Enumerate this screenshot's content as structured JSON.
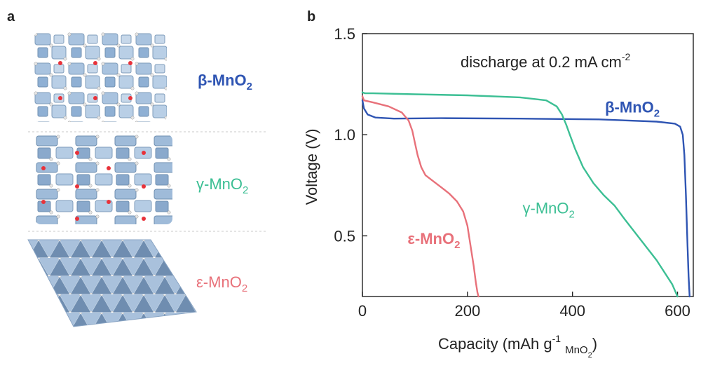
{
  "panel_a": {
    "letter": "a",
    "structures": [
      {
        "name": "beta",
        "label_main": "β-MnO",
        "label_sub": "2",
        "bold": true,
        "color": "#2f55b3"
      },
      {
        "name": "gamma",
        "label_main": "γ-MnO",
        "label_sub": "2",
        "bold": false,
        "color": "#3cbf94"
      },
      {
        "name": "epsilon",
        "label_main": "ε-MnO",
        "label_sub": "2",
        "bold": false,
        "color": "#e8717a"
      }
    ]
  },
  "panel_b": {
    "letter": "b",
    "annotation": {
      "main": "discharge at 0.2 mA cm",
      "sup": "-2"
    }
  },
  "chart_data": {
    "type": "line",
    "xlabel_main": "Capacity (mAh g",
    "xlabel_sup": "-1",
    "xlabel_sub_main": "MnO",
    "xlabel_sub_sub": "2",
    "xlabel_close": ")",
    "ylabel": "Voltage (V)",
    "xlim": [
      0,
      630
    ],
    "ylim": [
      0.2,
      1.5
    ],
    "xticks": [
      0,
      200,
      400,
      600
    ],
    "yticks": [
      0.5,
      1.0,
      1.5
    ],
    "ytick_labels": [
      "0.5",
      "1.0",
      "1.5"
    ],
    "series": [
      {
        "name": "β-MnO2",
        "label_main": "β-MnO",
        "label_sub": "2",
        "color": "#2f55b3",
        "bold": true,
        "x": [
          0,
          3,
          10,
          25,
          60,
          150,
          300,
          450,
          560,
          595,
          605,
          610,
          613,
          616,
          619,
          621,
          623
        ],
        "y": [
          1.17,
          1.13,
          1.1,
          1.085,
          1.08,
          1.082,
          1.08,
          1.076,
          1.065,
          1.055,
          1.04,
          1.0,
          0.9,
          0.7,
          0.45,
          0.3,
          0.2
        ]
      },
      {
        "name": "γ-MnO2",
        "label_main": "γ-MnO",
        "label_sub": "2",
        "color": "#3cbf94",
        "bold": false,
        "x": [
          0,
          5,
          20,
          100,
          200,
          300,
          350,
          370,
          380,
          388,
          395,
          405,
          420,
          440,
          460,
          480,
          500,
          530,
          560,
          590,
          600
        ],
        "y": [
          1.21,
          1.205,
          1.205,
          1.2,
          1.195,
          1.185,
          1.17,
          1.14,
          1.1,
          1.05,
          1.0,
          0.93,
          0.84,
          0.76,
          0.7,
          0.65,
          0.58,
          0.48,
          0.38,
          0.26,
          0.2
        ]
      },
      {
        "name": "ε-MnO2",
        "label_main": "ε-MnO",
        "label_sub": "2",
        "color": "#e8717a",
        "bold": true,
        "x": [
          0,
          3,
          20,
          50,
          75,
          88,
          95,
          100,
          105,
          112,
          120,
          135,
          150,
          165,
          180,
          192,
          200,
          206,
          212,
          216,
          219,
          221
        ],
        "y": [
          1.19,
          1.17,
          1.16,
          1.14,
          1.11,
          1.07,
          1.02,
          0.96,
          0.9,
          0.84,
          0.8,
          0.77,
          0.74,
          0.71,
          0.67,
          0.62,
          0.55,
          0.45,
          0.35,
          0.27,
          0.22,
          0.2
        ]
      }
    ]
  }
}
